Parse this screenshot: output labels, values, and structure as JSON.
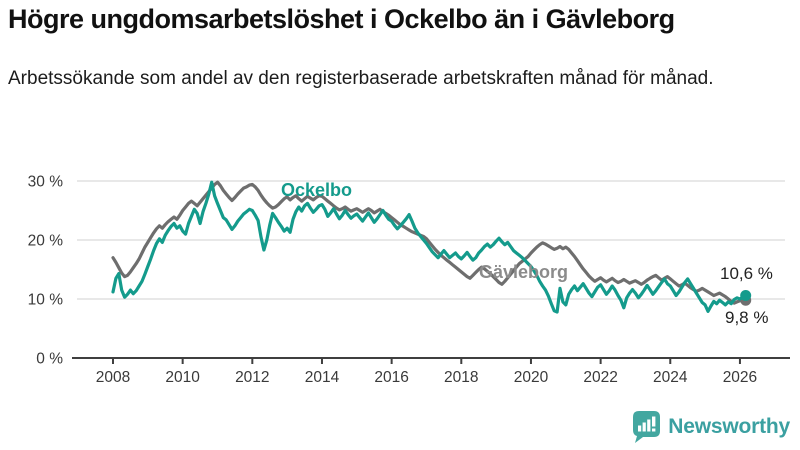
{
  "header": {
    "title": "Högre ungdomsarbetslöshet i Ockelbo än i Gävleborg",
    "subtitle": "Arbetssökande som andel av den registerbaserade arbetskraften månad för månad."
  },
  "chart_data": {
    "type": "line",
    "title": "Högre ungdomsarbetslöshet i Ockelbo än i Gävleborg",
    "x_unit": "month",
    "x_start": "2008-01",
    "x_end": "2026-03",
    "x_ticks": [
      2008,
      2010,
      2012,
      2014,
      2016,
      2018,
      2020,
      2022,
      2024,
      2026
    ],
    "y_ticks": [
      {
        "value": 30,
        "label": "30 %"
      },
      {
        "value": 20,
        "label": "20 %"
      },
      {
        "value": 10,
        "label": "10 %"
      },
      {
        "value": 0,
        "label": "0 %"
      }
    ],
    "ylim": [
      0,
      31
    ],
    "grid": true,
    "legend_position": "inline-annotations",
    "series": [
      {
        "name": "Ockelbo",
        "color": "#149b8c",
        "end_label": "10,6 %",
        "end_value": 10.6,
        "values": [
          11.2,
          13.5,
          14.3,
          11.5,
          10.3,
          10.8,
          11.5,
          10.9,
          11.4,
          12.2,
          13.0,
          14.2,
          15.5,
          16.8,
          18.2,
          19.4,
          20.2,
          19.6,
          20.8,
          21.6,
          22.3,
          22.8,
          22.0,
          22.4,
          21.5,
          21.0,
          22.8,
          24.0,
          25.2,
          24.5,
          22.8,
          24.8,
          26.2,
          27.8,
          29.8,
          27.5,
          26.2,
          25.0,
          23.8,
          23.4,
          22.6,
          21.8,
          22.4,
          23.2,
          23.8,
          24.4,
          24.8,
          25.2,
          25.0,
          24.2,
          23.3,
          20.5,
          18.3,
          20.0,
          22.5,
          24.5,
          23.8,
          23.0,
          22.3,
          21.5,
          22.0,
          21.3,
          23.5,
          24.8,
          25.6,
          24.9,
          25.8,
          26.2,
          25.4,
          24.7,
          25.2,
          25.8,
          26.0,
          25.2,
          24.0,
          24.6,
          25.3,
          24.4,
          23.6,
          24.2,
          25.0,
          24.3,
          23.7,
          24.1,
          24.4,
          23.8,
          23.2,
          23.9,
          24.6,
          23.8,
          23.0,
          23.6,
          24.3,
          25.0,
          24.2,
          23.5,
          23.2,
          22.5,
          21.9,
          22.4,
          23.0,
          23.6,
          24.3,
          23.2,
          22.0,
          21.2,
          20.6,
          20.0,
          19.4,
          18.7,
          18.0,
          17.5,
          17.0,
          17.6,
          18.2,
          17.6,
          17.0,
          17.4,
          17.8,
          17.2,
          16.8,
          17.3,
          17.9,
          17.2,
          16.6,
          17.0,
          17.8,
          18.3,
          18.9,
          19.3,
          18.8,
          19.2,
          19.8,
          20.3,
          19.7,
          19.2,
          19.6,
          18.9,
          18.2,
          17.8,
          17.4,
          17.0,
          16.5,
          16.0,
          15.5,
          14.8,
          14.0,
          13.0,
          12.2,
          11.5,
          10.5,
          9.2,
          8.0,
          7.8,
          11.8,
          9.5,
          9.0,
          10.8,
          11.6,
          12.2,
          11.4,
          12.0,
          12.6,
          11.8,
          11.0,
          10.4,
          11.2,
          12.0,
          12.4,
          11.6,
          10.8,
          11.4,
          12.2,
          11.5,
          10.6,
          9.8,
          8.5,
          10.2,
          11.0,
          11.6,
          11.0,
          10.2,
          10.8,
          11.5,
          12.3,
          11.6,
          10.8,
          11.4,
          12.1,
          12.8,
          13.4,
          12.6,
          12.2,
          11.4,
          10.6,
          11.2,
          12.0,
          12.8,
          13.4,
          12.6,
          11.8,
          11.0,
          10.2,
          9.4,
          9.0,
          7.9,
          8.8,
          9.6,
          9.2,
          9.8,
          9.4,
          9.0,
          9.5,
          9.2,
          9.9,
          10.2,
          10.0,
          10.3,
          10.6
        ]
      },
      {
        "name": "Gävleborg",
        "color": "#6e6e6e",
        "end_label": "9,8 %",
        "end_value": 9.8,
        "values": [
          17.0,
          16.2,
          15.3,
          14.4,
          13.8,
          14.0,
          14.6,
          15.3,
          16.0,
          16.8,
          17.8,
          18.8,
          19.6,
          20.4,
          21.2,
          21.9,
          22.4,
          22.0,
          22.6,
          23.1,
          23.5,
          23.9,
          23.5,
          24.2,
          25.0,
          25.6,
          26.2,
          26.6,
          26.2,
          25.8,
          26.4,
          27.0,
          27.6,
          28.2,
          28.8,
          29.4,
          29.8,
          29.2,
          28.4,
          27.8,
          27.2,
          26.7,
          27.2,
          27.8,
          28.3,
          28.8,
          29.0,
          29.3,
          29.4,
          29.0,
          28.4,
          27.6,
          26.9,
          26.3,
          25.8,
          25.4,
          25.6,
          26.0,
          26.5,
          27.0,
          27.3,
          26.8,
          27.2,
          27.5,
          27.0,
          26.6,
          27.0,
          27.4,
          27.1,
          26.8,
          27.2,
          27.5,
          27.4,
          27.0,
          26.6,
          26.2,
          25.8,
          25.4,
          25.1,
          25.3,
          25.6,
          25.2,
          24.9,
          25.1,
          25.3,
          25.0,
          24.7,
          25.0,
          25.3,
          25.0,
          24.6,
          24.9,
          25.2,
          24.8,
          24.5,
          24.2,
          23.8,
          23.4,
          23.0,
          22.6,
          22.3,
          22.0,
          21.7,
          21.4,
          21.2,
          21.0,
          20.8,
          20.6,
          20.2,
          19.6,
          19.0,
          18.4,
          17.9,
          17.4,
          17.0,
          16.6,
          16.2,
          15.8,
          15.4,
          15.0,
          14.6,
          14.2,
          13.8,
          13.5,
          14.0,
          14.5,
          15.0,
          15.4,
          15.1,
          14.7,
          14.3,
          13.8,
          13.3,
          12.8,
          12.5,
          13.0,
          13.6,
          14.2,
          14.8,
          15.4,
          16.0,
          16.4,
          16.8,
          17.2,
          17.8,
          18.3,
          18.8,
          19.2,
          19.5,
          19.3,
          19.0,
          18.7,
          18.4,
          18.6,
          18.9,
          18.5,
          18.8,
          18.4,
          17.8,
          17.2,
          16.5,
          15.8,
          15.1,
          14.5,
          13.9,
          13.4,
          13.0,
          13.3,
          13.6,
          13.2,
          12.9,
          13.2,
          13.5,
          13.1,
          12.8,
          13.0,
          13.3,
          13.0,
          12.7,
          12.9,
          13.1,
          12.8,
          12.5,
          12.8,
          13.2,
          13.5,
          13.8,
          14.0,
          13.6,
          13.2,
          13.5,
          13.8,
          13.4,
          13.0,
          12.6,
          12.2,
          12.4,
          12.7,
          12.3,
          11.9,
          11.6,
          11.3,
          11.5,
          11.8,
          11.5,
          11.2,
          10.9,
          10.6,
          10.8,
          11.0,
          10.7,
          10.4,
          10.0,
          9.6,
          9.3,
          9.5,
          9.7,
          9.9,
          9.8
        ]
      }
    ],
    "colors": {
      "ockelbo": "#149b8c",
      "gavleborg": "#6e6e6e",
      "grid": "#d9d9d9",
      "axis": "#3f3f3f"
    }
  },
  "annotations": {
    "ockelbo": "Ockelbo",
    "gavleborg": "Gävleborg",
    "end_ockelbo": "10,6 %",
    "end_gavleborg": "9,8 %"
  },
  "footer": {
    "brand": "Newsworthy"
  }
}
